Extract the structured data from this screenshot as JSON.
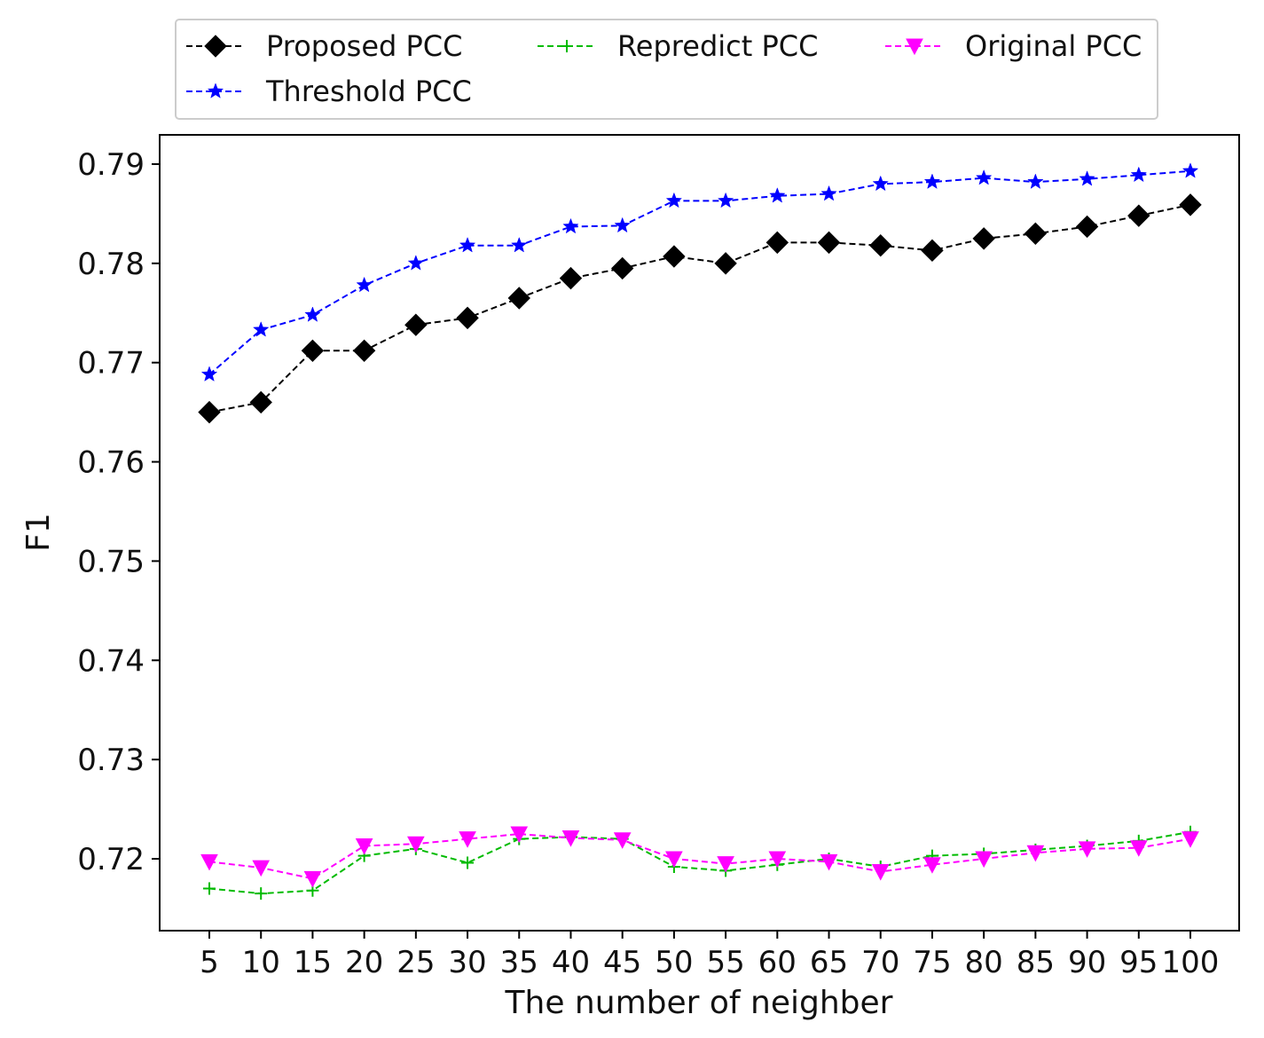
{
  "chart_data": {
    "type": "line",
    "xlabel": "The number of neighber",
    "ylabel": "F1",
    "x": [
      5,
      10,
      15,
      20,
      25,
      30,
      35,
      40,
      45,
      50,
      55,
      60,
      65,
      70,
      75,
      80,
      85,
      90,
      95,
      100
    ],
    "x_ticks": [
      "5",
      "10",
      "15",
      "20",
      "25",
      "30",
      "35",
      "40",
      "45",
      "50",
      "55",
      "60",
      "65",
      "70",
      "75",
      "80",
      "85",
      "90",
      "95",
      "100"
    ],
    "y_ticks": [
      "0.72",
      "0.73",
      "0.74",
      "0.75",
      "0.76",
      "0.77",
      "0.78",
      "0.79"
    ],
    "ylim": [
      0.7115,
      0.7925
    ],
    "grid": false,
    "legend_position": "top",
    "series": [
      {
        "name": "Proposed PCC",
        "color": "#000000",
        "marker": "diamond",
        "values": [
          0.765,
          0.766,
          0.7712,
          0.7712,
          0.7738,
          0.7745,
          0.7765,
          0.7785,
          0.7795,
          0.7807,
          0.78,
          0.7821,
          0.7821,
          0.7818,
          0.7813,
          0.7825,
          0.783,
          0.7837,
          0.7848,
          0.7859
        ]
      },
      {
        "name": "Repredict PCC",
        "color": "#00bb00",
        "marker": "plus",
        "values": [
          0.717,
          0.7165,
          0.7168,
          0.7203,
          0.721,
          0.7196,
          0.722,
          0.7222,
          0.722,
          0.7192,
          0.7188,
          0.7194,
          0.72,
          0.7192,
          0.7203,
          0.7205,
          0.7209,
          0.7213,
          0.7218,
          0.7227
        ]
      },
      {
        "name": "Original PCC",
        "color": "#ff00ff",
        "marker": "triangle-down",
        "values": [
          0.7197,
          0.7191,
          0.718,
          0.7213,
          0.7215,
          0.722,
          0.7225,
          0.7221,
          0.7219,
          0.72,
          0.7195,
          0.72,
          0.7197,
          0.7187,
          0.7194,
          0.72,
          0.7206,
          0.721,
          0.7211,
          0.722
        ]
      },
      {
        "name": "Threshold PCC",
        "color": "#0000ff",
        "marker": "star",
        "values": [
          0.7688,
          0.7733,
          0.7748,
          0.7778,
          0.78,
          0.7818,
          0.7818,
          0.7837,
          0.7838,
          0.7863,
          0.7863,
          0.7868,
          0.787,
          0.788,
          0.7882,
          0.7886,
          0.7882,
          0.7885,
          0.7889,
          0.7893
        ]
      }
    ]
  }
}
